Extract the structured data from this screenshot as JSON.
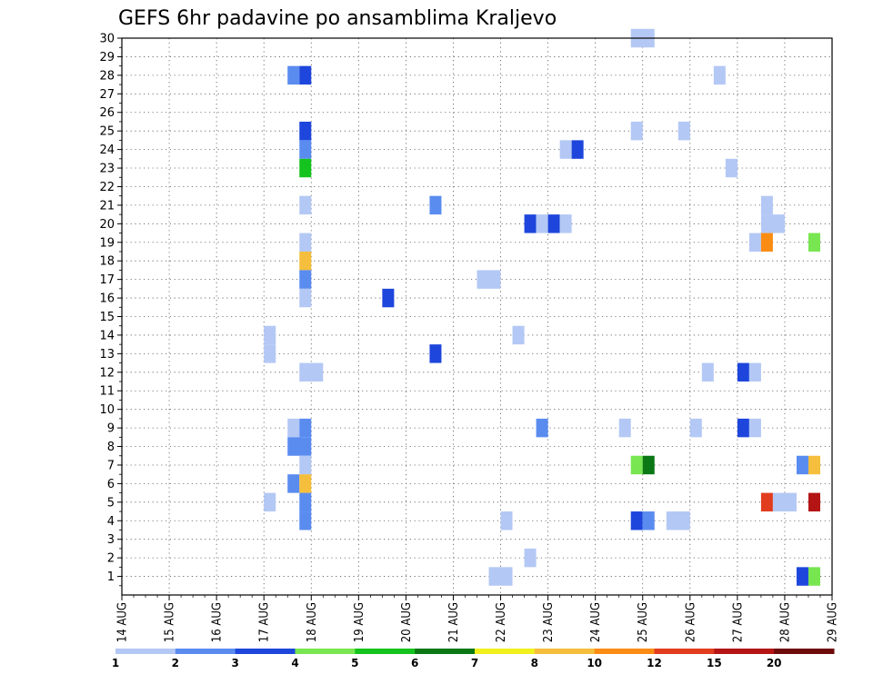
{
  "chart_data": {
    "type": "heatmap",
    "title": "GEFS 6hr padavine po ansamblima Kraljevo",
    "xlabel": "",
    "ylabel": "",
    "x_tick_labels": [
      "14 AUG",
      "15 AUG",
      "16 AUG",
      "17 AUG",
      "18 AUG",
      "19 AUG",
      "20 AUG",
      "21 AUG",
      "22 AUG",
      "23 AUG",
      "24 AUG",
      "25 AUG",
      "26 AUG",
      "27 AUG",
      "28 AUG",
      "29 AUG"
    ],
    "x_range_days": [
      0,
      15
    ],
    "y_tick_labels": [
      "1",
      "2",
      "3",
      "4",
      "5",
      "6",
      "7",
      "8",
      "9",
      "10",
      "11",
      "12",
      "13",
      "14",
      "15",
      "16",
      "17",
      "18",
      "19",
      "20",
      "21",
      "22",
      "23",
      "24",
      "25",
      "26",
      "27",
      "28",
      "29",
      "30"
    ],
    "y_range": [
      0,
      30
    ],
    "grid": true,
    "legend": {
      "placement": "bottom",
      "labels": [
        "1",
        "2",
        "3",
        "4",
        "5",
        "6",
        "7",
        "8",
        "10",
        "12",
        "15",
        "20"
      ],
      "colors": [
        "#b4c8f5",
        "#5a8cf0",
        "#1e46dc",
        "#78e650",
        "#14c31e",
        "#0a7814",
        "#f0f01e",
        "#f5be3c",
        "#fa8c14",
        "#e13c1e",
        "#b41414",
        "#6e0a0a"
      ]
    },
    "cells": [
      {
        "member": 30,
        "t": 10.75,
        "w": 0.5,
        "c": "#b4c8f5"
      },
      {
        "member": 28,
        "t": 3.5,
        "w": 0.25,
        "c": "#5a8cf0"
      },
      {
        "member": 28,
        "t": 3.75,
        "w": 0.25,
        "c": "#1e46dc"
      },
      {
        "member": 28,
        "t": 12.5,
        "w": 0.25,
        "c": "#b4c8f5"
      },
      {
        "member": 25,
        "t": 3.75,
        "w": 0.25,
        "c": "#1e46dc"
      },
      {
        "member": 25,
        "t": 10.75,
        "w": 0.25,
        "c": "#b4c8f5"
      },
      {
        "member": 25,
        "t": 11.75,
        "w": 0.25,
        "c": "#b4c8f5"
      },
      {
        "member": 24,
        "t": 3.75,
        "w": 0.25,
        "c": "#5a8cf0"
      },
      {
        "member": 24,
        "t": 9.25,
        "w": 0.25,
        "c": "#b4c8f5"
      },
      {
        "member": 24,
        "t": 9.5,
        "w": 0.25,
        "c": "#1e46dc"
      },
      {
        "member": 23,
        "t": 3.75,
        "w": 0.25,
        "c": "#14c31e"
      },
      {
        "member": 23,
        "t": 12.75,
        "w": 0.25,
        "c": "#b4c8f5"
      },
      {
        "member": 21,
        "t": 3.75,
        "w": 0.25,
        "c": "#b4c8f5"
      },
      {
        "member": 21,
        "t": 6.5,
        "w": 0.25,
        "c": "#5a8cf0"
      },
      {
        "member": 21,
        "t": 13.5,
        "w": 0.25,
        "c": "#b4c8f5"
      },
      {
        "member": 20,
        "t": 8.5,
        "w": 0.25,
        "c": "#1e46dc"
      },
      {
        "member": 20,
        "t": 8.75,
        "w": 0.25,
        "c": "#b4c8f5"
      },
      {
        "member": 20,
        "t": 9.0,
        "w": 0.25,
        "c": "#1e46dc"
      },
      {
        "member": 20,
        "t": 9.25,
        "w": 0.25,
        "c": "#b4c8f5"
      },
      {
        "member": 20,
        "t": 13.5,
        "w": 0.5,
        "c": "#b4c8f5"
      },
      {
        "member": 19,
        "t": 3.75,
        "w": 0.25,
        "c": "#b4c8f5"
      },
      {
        "member": 19,
        "t": 13.25,
        "w": 0.25,
        "c": "#b4c8f5"
      },
      {
        "member": 19,
        "t": 13.5,
        "w": 0.25,
        "c": "#fa8c14"
      },
      {
        "member": 19,
        "t": 14.5,
        "w": 0.25,
        "c": "#78e650"
      },
      {
        "member": 18,
        "t": 3.75,
        "w": 0.25,
        "c": "#f5be3c"
      },
      {
        "member": 17,
        "t": 3.75,
        "w": 0.25,
        "c": "#5a8cf0"
      },
      {
        "member": 17,
        "t": 7.5,
        "w": 0.5,
        "c": "#b4c8f5"
      },
      {
        "member": 16,
        "t": 3.75,
        "w": 0.25,
        "c": "#b4c8f5"
      },
      {
        "member": 16,
        "t": 5.5,
        "w": 0.25,
        "c": "#1e46dc"
      },
      {
        "member": 14,
        "t": 3.0,
        "w": 0.25,
        "c": "#b4c8f5"
      },
      {
        "member": 14,
        "t": 8.25,
        "w": 0.25,
        "c": "#b4c8f5"
      },
      {
        "member": 13,
        "t": 3.0,
        "w": 0.25,
        "c": "#b4c8f5"
      },
      {
        "member": 13,
        "t": 6.5,
        "w": 0.25,
        "c": "#1e46dc"
      },
      {
        "member": 12,
        "t": 3.75,
        "w": 0.5,
        "c": "#b4c8f5"
      },
      {
        "member": 12,
        "t": 12.25,
        "w": 0.25,
        "c": "#b4c8f5"
      },
      {
        "member": 12,
        "t": 13.0,
        "w": 0.25,
        "c": "#1e46dc"
      },
      {
        "member": 12,
        "t": 13.25,
        "w": 0.25,
        "c": "#b4c8f5"
      },
      {
        "member": 9,
        "t": 3.5,
        "w": 0.25,
        "c": "#b4c8f5"
      },
      {
        "member": 9,
        "t": 3.75,
        "w": 0.25,
        "c": "#5a8cf0"
      },
      {
        "member": 9,
        "t": 8.75,
        "w": 0.25,
        "c": "#5a8cf0"
      },
      {
        "member": 9,
        "t": 10.5,
        "w": 0.25,
        "c": "#b4c8f5"
      },
      {
        "member": 9,
        "t": 12.0,
        "w": 0.25,
        "c": "#b4c8f5"
      },
      {
        "member": 9,
        "t": 13.0,
        "w": 0.25,
        "c": "#1e46dc"
      },
      {
        "member": 9,
        "t": 13.25,
        "w": 0.25,
        "c": "#b4c8f5"
      },
      {
        "member": 8,
        "t": 3.5,
        "w": 0.5,
        "c": "#5a8cf0"
      },
      {
        "member": 7,
        "t": 3.75,
        "w": 0.25,
        "c": "#b4c8f5"
      },
      {
        "member": 7,
        "t": 10.75,
        "w": 0.25,
        "c": "#78e650"
      },
      {
        "member": 7,
        "t": 11.0,
        "w": 0.25,
        "c": "#0a7814"
      },
      {
        "member": 7,
        "t": 14.25,
        "w": 0.25,
        "c": "#5a8cf0"
      },
      {
        "member": 7,
        "t": 14.5,
        "w": 0.25,
        "c": "#f5be3c"
      },
      {
        "member": 6,
        "t": 3.5,
        "w": 0.25,
        "c": "#5a8cf0"
      },
      {
        "member": 6,
        "t": 3.75,
        "w": 0.25,
        "c": "#f5be3c"
      },
      {
        "member": 5,
        "t": 3.0,
        "w": 0.25,
        "c": "#b4c8f5"
      },
      {
        "member": 5,
        "t": 3.75,
        "w": 0.25,
        "c": "#5a8cf0"
      },
      {
        "member": 5,
        "t": 13.5,
        "w": 0.25,
        "c": "#e13c1e"
      },
      {
        "member": 5,
        "t": 13.75,
        "w": 0.5,
        "c": "#b4c8f5"
      },
      {
        "member": 5,
        "t": 14.5,
        "w": 0.25,
        "c": "#b41414"
      },
      {
        "member": 4,
        "t": 3.75,
        "w": 0.25,
        "c": "#5a8cf0"
      },
      {
        "member": 4,
        "t": 8.0,
        "w": 0.25,
        "c": "#b4c8f5"
      },
      {
        "member": 4,
        "t": 10.75,
        "w": 0.25,
        "c": "#1e46dc"
      },
      {
        "member": 4,
        "t": 11.0,
        "w": 0.25,
        "c": "#5a8cf0"
      },
      {
        "member": 4,
        "t": 11.5,
        "w": 0.5,
        "c": "#b4c8f5"
      },
      {
        "member": 2,
        "t": 8.5,
        "w": 0.25,
        "c": "#b4c8f5"
      },
      {
        "member": 1,
        "t": 7.75,
        "w": 0.5,
        "c": "#b4c8f5"
      },
      {
        "member": 1,
        "t": 14.25,
        "w": 0.25,
        "c": "#1e46dc"
      },
      {
        "member": 1,
        "t": 14.5,
        "w": 0.25,
        "c": "#78e650"
      }
    ]
  }
}
